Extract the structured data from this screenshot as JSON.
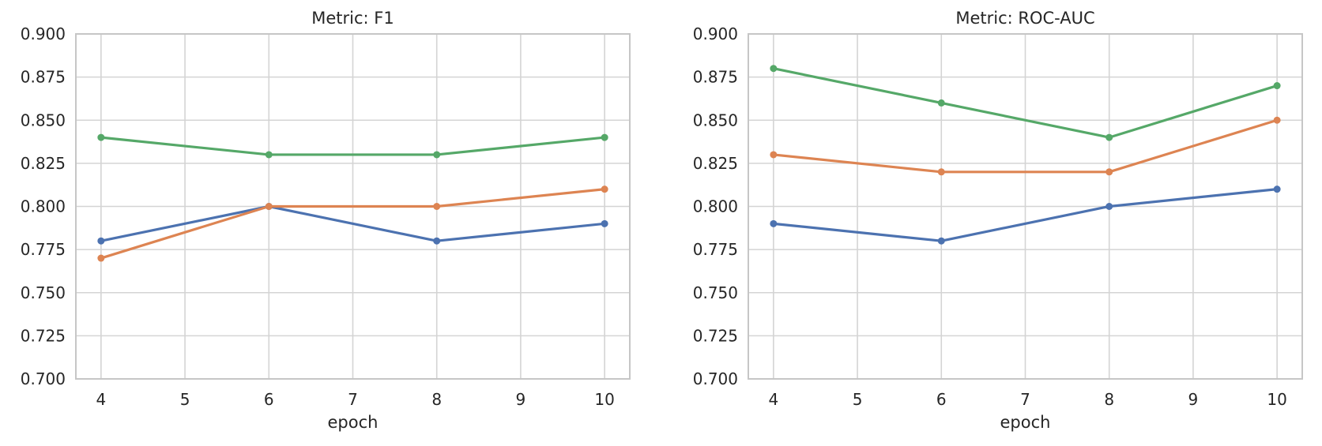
{
  "figure": {
    "background_color": "#ffffff",
    "text_color": "#262626",
    "grid_color": "#d4d4d4",
    "spine_color": "#c6c6c6"
  },
  "chart_data": [
    {
      "type": "line",
      "title": "Metric: F1",
      "xlabel": "epoch",
      "ylabel": "",
      "x": [
        4,
        6,
        8,
        10
      ],
      "xticks": [
        4,
        5,
        6,
        7,
        8,
        9,
        10
      ],
      "xtick_labels": [
        "4",
        "5",
        "6",
        "7",
        "8",
        "9",
        "10"
      ],
      "yticks": [
        0.7,
        0.725,
        0.75,
        0.775,
        0.8,
        0.825,
        0.85,
        0.875,
        0.9
      ],
      "ytick_labels": [
        "0.700",
        "0.725",
        "0.750",
        "0.775",
        "0.800",
        "0.825",
        "0.850",
        "0.875",
        "0.900"
      ],
      "xlim": [
        3.7,
        10.3
      ],
      "ylim": [
        0.7,
        0.9
      ],
      "grid": true,
      "legend": "none",
      "series": [
        {
          "name": "blue",
          "color": "#4C72B0",
          "values": [
            0.78,
            0.8,
            0.78,
            0.79
          ]
        },
        {
          "name": "orange",
          "color": "#DD8452",
          "values": [
            0.77,
            0.8,
            0.8,
            0.81
          ]
        },
        {
          "name": "green",
          "color": "#55A868",
          "values": [
            0.84,
            0.83,
            0.83,
            0.84
          ]
        }
      ]
    },
    {
      "type": "line",
      "title": "Metric: ROC-AUC",
      "xlabel": "epoch",
      "ylabel": "",
      "x": [
        4,
        6,
        8,
        10
      ],
      "xticks": [
        4,
        5,
        6,
        7,
        8,
        9,
        10
      ],
      "xtick_labels": [
        "4",
        "5",
        "6",
        "7",
        "8",
        "9",
        "10"
      ],
      "yticks": [
        0.7,
        0.725,
        0.75,
        0.775,
        0.8,
        0.825,
        0.85,
        0.875,
        0.9
      ],
      "ytick_labels": [
        "0.700",
        "0.725",
        "0.750",
        "0.775",
        "0.800",
        "0.825",
        "0.850",
        "0.875",
        "0.900"
      ],
      "xlim": [
        3.7,
        10.3
      ],
      "ylim": [
        0.7,
        0.9
      ],
      "grid": true,
      "legend": "none",
      "series": [
        {
          "name": "blue",
          "color": "#4C72B0",
          "values": [
            0.79,
            0.78,
            0.8,
            0.81
          ]
        },
        {
          "name": "orange",
          "color": "#DD8452",
          "values": [
            0.83,
            0.82,
            0.82,
            0.85
          ]
        },
        {
          "name": "green",
          "color": "#55A868",
          "values": [
            0.88,
            0.86,
            0.84,
            0.87
          ]
        }
      ]
    }
  ]
}
